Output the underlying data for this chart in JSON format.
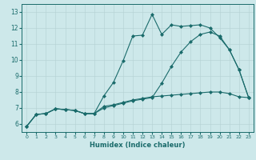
{
  "xlabel": "Humidex (Indice chaleur)",
  "xlim": [
    -0.5,
    23.5
  ],
  "ylim": [
    5.5,
    13.5
  ],
  "xticks": [
    0,
    1,
    2,
    3,
    4,
    5,
    6,
    7,
    8,
    9,
    10,
    11,
    12,
    13,
    14,
    15,
    16,
    17,
    18,
    19,
    20,
    21,
    22,
    23
  ],
  "yticks": [
    6,
    7,
    8,
    9,
    10,
    11,
    12,
    13
  ],
  "bg_color": "#cde8ea",
  "grid_color": "#b8d4d6",
  "line_color": "#1a6b6b",
  "line1_x": [
    0,
    1,
    2,
    3,
    4,
    5,
    6,
    7,
    8,
    9,
    10,
    11,
    12,
    13,
    14,
    15,
    16,
    17,
    18,
    19,
    20,
    21,
    22,
    23
  ],
  "line1_y": [
    5.85,
    6.6,
    6.65,
    6.95,
    6.9,
    6.85,
    6.65,
    6.65,
    7.75,
    8.6,
    9.95,
    11.5,
    11.55,
    12.85,
    11.6,
    12.2,
    12.1,
    12.15,
    12.2,
    12.0,
    11.4,
    10.65,
    9.4,
    7.65
  ],
  "line2_x": [
    0,
    1,
    2,
    3,
    4,
    5,
    6,
    7,
    8,
    9,
    10,
    11,
    12,
    13,
    14,
    15,
    16,
    17,
    18,
    19,
    20,
    21,
    22,
    23
  ],
  "line2_y": [
    5.85,
    6.6,
    6.65,
    6.95,
    6.9,
    6.85,
    6.65,
    6.65,
    7.1,
    7.2,
    7.35,
    7.5,
    7.6,
    7.7,
    7.75,
    7.8,
    7.85,
    7.9,
    7.95,
    8.0,
    8.0,
    7.9,
    7.7,
    7.65
  ],
  "line3_x": [
    0,
    1,
    2,
    3,
    4,
    5,
    6,
    7,
    8,
    9,
    10,
    11,
    12,
    13,
    14,
    15,
    16,
    17,
    18,
    19,
    20,
    21,
    22,
    23
  ],
  "line3_y": [
    5.85,
    6.6,
    6.65,
    6.95,
    6.9,
    6.85,
    6.65,
    6.65,
    7.0,
    7.15,
    7.3,
    7.45,
    7.55,
    7.65,
    8.55,
    9.6,
    10.5,
    11.15,
    11.6,
    11.75,
    11.5,
    10.65,
    9.4,
    7.65
  ]
}
